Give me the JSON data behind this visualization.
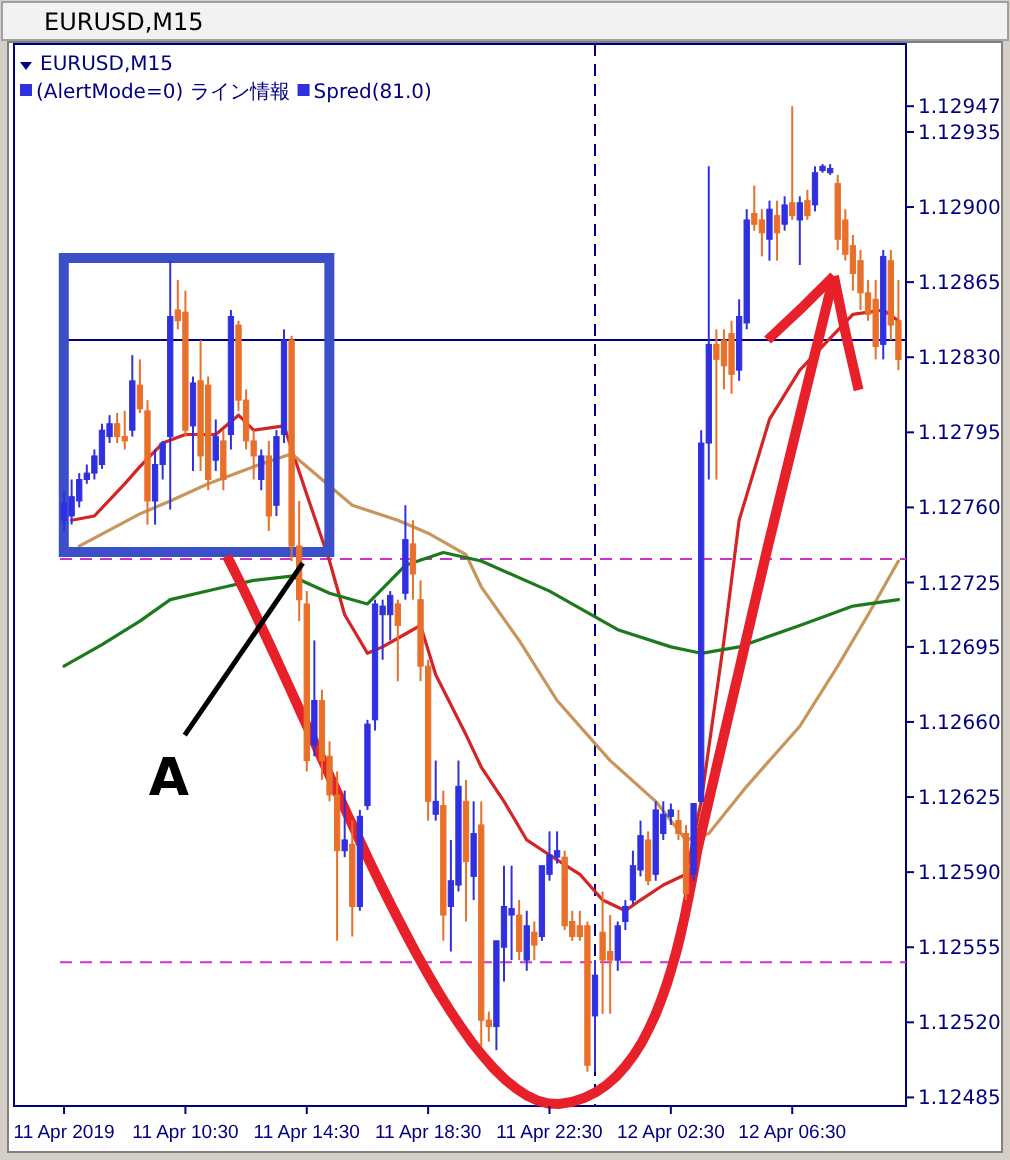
{
  "chart_data": {
    "type": "candlestick",
    "title": "EURUSD,M15",
    "annotations": [
      "EURUSD,M15",
      "(AlertMode=0) ライン情報",
      "Spred(81.0)",
      {
        "text": "A",
        "x": "2019-04-11T14:22",
        "y": 1.12734
      }
    ],
    "x": [
      "2019-04-11T06:30",
      "2019-04-11T06:45",
      "2019-04-11T07:00",
      "2019-04-11T07:15",
      "2019-04-11T07:30",
      "2019-04-11T07:45",
      "2019-04-11T08:00",
      "2019-04-11T08:15",
      "2019-04-11T08:30",
      "2019-04-11T08:45",
      "2019-04-11T09:00",
      "2019-04-11T09:15",
      "2019-04-11T09:30",
      "2019-04-11T09:45",
      "2019-04-11T10:00",
      "2019-04-11T10:15",
      "2019-04-11T10:30",
      "2019-04-11T10:45",
      "2019-04-11T11:00",
      "2019-04-11T11:15",
      "2019-04-11T11:30",
      "2019-04-11T11:45",
      "2019-04-11T12:00",
      "2019-04-11T12:15",
      "2019-04-11T12:30",
      "2019-04-11T12:45",
      "2019-04-11T13:00",
      "2019-04-11T13:15",
      "2019-04-11T13:30",
      "2019-04-11T13:45",
      "2019-04-11T14:00",
      "2019-04-11T14:15",
      "2019-04-11T14:30",
      "2019-04-11T14:45",
      "2019-04-11T15:00",
      "2019-04-11T15:15",
      "2019-04-11T15:30",
      "2019-04-11T15:45",
      "2019-04-11T16:00",
      "2019-04-11T16:15",
      "2019-04-11T16:30",
      "2019-04-11T16:45",
      "2019-04-11T17:00",
      "2019-04-11T17:15",
      "2019-04-11T17:30",
      "2019-04-11T17:45",
      "2019-04-11T18:00",
      "2019-04-11T18:15",
      "2019-04-11T18:30",
      "2019-04-11T18:45",
      "2019-04-11T19:00",
      "2019-04-11T19:15",
      "2019-04-11T19:30",
      "2019-04-11T19:45",
      "2019-04-11T20:00",
      "2019-04-11T20:15",
      "2019-04-11T20:30",
      "2019-04-11T20:45",
      "2019-04-11T21:00",
      "2019-04-11T21:15",
      "2019-04-11T21:30",
      "2019-04-11T21:45",
      "2019-04-11T22:00",
      "2019-04-11T22:15",
      "2019-04-11T22:30",
      "2019-04-11T22:45",
      "2019-04-11T23:00",
      "2019-04-11T23:15",
      "2019-04-11T23:30",
      "2019-04-11T23:45",
      "2019-04-12T00:00",
      "2019-04-12T00:15",
      "2019-04-12T00:30",
      "2019-04-12T00:45",
      "2019-04-12T01:00",
      "2019-04-12T01:15",
      "2019-04-12T01:30",
      "2019-04-12T01:45",
      "2019-04-12T02:00",
      "2019-04-12T02:15",
      "2019-04-12T02:30",
      "2019-04-12T02:45",
      "2019-04-12T03:00",
      "2019-04-12T03:15",
      "2019-04-12T03:30",
      "2019-04-12T03:45",
      "2019-04-12T04:00",
      "2019-04-12T04:15",
      "2019-04-12T04:30",
      "2019-04-12T04:45",
      "2019-04-12T05:00",
      "2019-04-12T05:15",
      "2019-04-12T05:30",
      "2019-04-12T05:45",
      "2019-04-12T06:00",
      "2019-04-12T06:15",
      "2019-04-12T06:30",
      "2019-04-12T06:45",
      "2019-04-12T07:00",
      "2019-04-12T07:15",
      "2019-04-12T07:30",
      "2019-04-12T07:45",
      "2019-04-12T08:00",
      "2019-04-12T08:15",
      "2019-04-12T08:30",
      "2019-04-12T08:45",
      "2019-04-12T09:00",
      "2019-04-12T09:15",
      "2019-04-12T09:30",
      "2019-04-12T09:45",
      "2019-04-12T10:00"
    ],
    "ohlc": [
      [
        1.12754,
        1.12768,
        1.12749,
        1.12762
      ],
      [
        1.12756,
        1.12773,
        1.12752,
        1.12765
      ],
      [
        1.12763,
        1.12776,
        1.1276,
        1.12773
      ],
      [
        1.12773,
        1.1278,
        1.12771,
        1.12776
      ],
      [
        1.12776,
        1.12787,
        1.12773,
        1.12784
      ],
      [
        1.1278,
        1.12799,
        1.12778,
        1.12796
      ],
      [
        1.12793,
        1.12803,
        1.1279,
        1.12799
      ],
      [
        1.12799,
        1.12804,
        1.1279,
        1.12793
      ],
      [
        1.12793,
        1.12805,
        1.12787,
        1.12791
      ],
      [
        1.12796,
        1.12831,
        1.12793,
        1.12819
      ],
      [
        1.12817,
        1.12829,
        1.12804,
        1.12806
      ],
      [
        1.12805,
        1.1281,
        1.12752,
        1.12763
      ],
      [
        1.12763,
        1.12787,
        1.12752,
        1.1278
      ],
      [
        1.1278,
        1.12791,
        1.12773,
        1.1279
      ],
      [
        1.12793,
        1.12875,
        1.12759,
        1.12849
      ],
      [
        1.12852,
        1.12866,
        1.12843,
        1.12847
      ],
      [
        1.12851,
        1.12861,
        1.12793,
        1.12796
      ],
      [
        1.12798,
        1.12821,
        1.12777,
        1.12818
      ],
      [
        1.12819,
        1.12838,
        1.12777,
        1.12784
      ],
      [
        1.12817,
        1.12821,
        1.12768,
        1.12773
      ],
      [
        1.12782,
        1.12801,
        1.12777,
        1.12793
      ],
      [
        1.12791,
        1.12796,
        1.12768,
        1.12773
      ],
      [
        1.12794,
        1.12852,
        1.12787,
        1.12849
      ],
      [
        1.12845,
        1.12847,
        1.12805,
        1.1281
      ],
      [
        1.1281,
        1.12815,
        1.12787,
        1.12791
      ],
      [
        1.12791,
        1.12796,
        1.12773,
        1.12784
      ],
      [
        1.12773,
        1.12787,
        1.12768,
        1.12784
      ],
      [
        1.12784,
        1.12791,
        1.12749,
        1.12756
      ],
      [
        1.12761,
        1.12796,
        1.12756,
        1.12793
      ],
      [
        1.12794,
        1.12843,
        1.1279,
        1.12838
      ],
      [
        1.12838,
        1.1284,
        1.12735,
        1.12742
      ],
      [
        1.12742,
        1.12763,
        1.12707,
        1.12717
      ],
      [
        1.12715,
        1.12721,
        1.12637,
        1.12642
      ],
      [
        1.12649,
        1.12698,
        1.12644,
        1.1267
      ],
      [
        1.1267,
        1.12675,
        1.12633,
        1.12642
      ],
      [
        1.12644,
        1.12651,
        1.12623,
        1.12626
      ],
      [
        1.12626,
        1.12637,
        1.12558,
        1.126
      ],
      [
        1.126,
        1.12628,
        1.12597,
        1.12605
      ],
      [
        1.12603,
        1.12614,
        1.1256,
        1.12574
      ],
      [
        1.12574,
        1.12619,
        1.12572,
        1.12616
      ],
      [
        1.12621,
        1.12661,
        1.12619,
        1.12659
      ],
      [
        1.12661,
        1.12717,
        1.12656,
        1.12715
      ],
      [
        1.1271,
        1.12717,
        1.12689,
        1.12714
      ],
      [
        1.1271,
        1.12721,
        1.12698,
        1.12719
      ],
      [
        1.12715,
        1.12717,
        1.12679,
        1.12705
      ],
      [
        1.1272,
        1.12761,
        1.12717,
        1.12745
      ],
      [
        1.12743,
        1.12754,
        1.12717,
        1.12729
      ],
      [
        1.12717,
        1.12726,
        1.12679,
        1.12686
      ],
      [
        1.12686,
        1.12689,
        1.12614,
        1.12623
      ],
      [
        1.12617,
        1.12642,
        1.12614,
        1.12623
      ],
      [
        1.12621,
        1.12628,
        1.12558,
        1.1257
      ],
      [
        1.12574,
        1.12605,
        1.12553,
        1.12586
      ],
      [
        1.12584,
        1.12642,
        1.12581,
        1.1263
      ],
      [
        1.12623,
        1.12633,
        1.12567,
        1.12595
      ],
      [
        1.12588,
        1.12623,
        1.12577,
        1.12608
      ],
      [
        1.12612,
        1.12623,
        1.12509,
        1.12521
      ],
      [
        1.12521,
        1.12525,
        1.12511,
        1.12518
      ],
      [
        1.12518,
        1.12558,
        1.12507,
        1.12558
      ],
      [
        1.12555,
        1.12593,
        1.12539,
        1.12574
      ],
      [
        1.1257,
        1.12593,
        1.12549,
        1.12573
      ],
      [
        1.1257,
        1.12577,
        1.12549,
        1.12553
      ],
      [
        1.12549,
        1.12572,
        1.12544,
        1.12565
      ],
      [
        1.12562,
        1.12567,
        1.12549,
        1.12556
      ],
      [
        1.1256,
        1.12593,
        1.12558,
        1.12593
      ],
      [
        1.12589,
        1.12609,
        1.12586,
        1.12598
      ],
      [
        1.12597,
        1.12609,
        1.12594,
        1.126
      ],
      [
        1.12597,
        1.126,
        1.12563,
        1.12565
      ],
      [
        1.12567,
        1.12572,
        1.12558,
        1.1256
      ],
      [
        1.12565,
        1.12572,
        1.12558,
        1.1256
      ],
      [
        1.12565,
        1.12567,
        1.12497,
        1.125
      ],
      [
        1.12523,
        1.12549,
        1.12497,
        1.12542
      ],
      [
        1.12562,
        1.12581,
        1.12524,
        1.12549
      ],
      [
        1.12553,
        1.1257,
        1.12524,
        1.12549
      ],
      [
        1.12549,
        1.12567,
        1.12544,
        1.12565
      ],
      [
        1.12567,
        1.12577,
        1.12563,
        1.12574
      ],
      [
        1.12577,
        1.126,
        1.12575,
        1.12593
      ],
      [
        1.12591,
        1.12614,
        1.12588,
        1.12607
      ],
      [
        1.12605,
        1.12609,
        1.12584,
        1.12586
      ],
      [
        1.12589,
        1.12623,
        1.12586,
        1.12619
      ],
      [
        1.12608,
        1.12623,
        1.12605,
        1.12617
      ],
      [
        1.12616,
        1.12622,
        1.12612,
        1.12619
      ],
      [
        1.12614,
        1.12619,
        1.12605,
        1.12608
      ],
      [
        1.12608,
        1.12612,
        1.12577,
        1.1258
      ],
      [
        1.12589,
        1.12622,
        1.12586,
        1.12622
      ],
      [
        1.12623,
        1.12796,
        1.12622,
        1.1279
      ],
      [
        1.1279,
        1.12919,
        1.12773,
        1.12836
      ],
      [
        1.12836,
        1.12843,
        1.12773,
        1.12829
      ],
      [
        1.12838,
        1.12843,
        1.12815,
        1.12826
      ],
      [
        1.12841,
        1.12847,
        1.12813,
        1.12822
      ],
      [
        1.12824,
        1.12857,
        1.12819,
        1.12849
      ],
      [
        1.12846,
        1.12899,
        1.12843,
        1.12894
      ],
      [
        1.12897,
        1.1291,
        1.12889,
        1.12892
      ],
      [
        1.12894,
        1.12899,
        1.12877,
        1.12888
      ],
      [
        1.12885,
        1.12903,
        1.12875,
        1.12899
      ],
      [
        1.12896,
        1.12903,
        1.12875,
        1.12888
      ],
      [
        1.12892,
        1.12905,
        1.12889,
        1.12901
      ],
      [
        1.12902,
        1.12947,
        1.12894,
        1.12896
      ],
      [
        1.12894,
        1.12905,
        1.12873,
        1.12902
      ],
      [
        1.12903,
        1.12908,
        1.12894,
        1.12896
      ],
      [
        1.12901,
        1.12919,
        1.12898,
        1.12916
      ],
      [
        1.12917,
        1.1292,
        1.12916,
        1.12919
      ],
      [
        1.12916,
        1.1292,
        1.12915,
        1.12918
      ],
      [
        1.12911,
        1.12915,
        1.1288,
        1.12885
      ],
      [
        1.12894,
        1.12899,
        1.12875,
        1.12878
      ],
      [
        1.12882,
        1.12887,
        1.12861,
        1.12869
      ],
      [
        1.12875,
        1.1288,
        1.12852,
        1.1286
      ],
      [
        1.1286,
        1.12866,
        1.12847,
        1.1285
      ],
      [
        1.12857,
        1.12866,
        1.12829,
        1.12835
      ],
      [
        1.12836,
        1.1288,
        1.12829,
        1.12877
      ],
      [
        1.12875,
        1.1288,
        1.12838,
        1.12845
      ],
      [
        1.12847,
        1.12866,
        1.12824,
        1.12829
      ]
    ],
    "colors": [
      "#3030e0",
      "#3030e0",
      "#3030e0",
      "#3030e0",
      "#3030e0",
      "#3030e0",
      "#3030e0",
      "#e8702a",
      "#e8702a",
      "#3030e0",
      "#e8702a",
      "#e8702a",
      "#3030e0",
      "#3030e0",
      "#3030e0",
      "#e8702a",
      "#e8702a",
      "#3030e0",
      "#e8702a",
      "#e8702a",
      "#3030e0",
      "#e8702a",
      "#3030e0",
      "#e8702a",
      "#e8702a",
      "#e8702a",
      "#3030e0",
      "#e8702a",
      "#3030e0",
      "#3030e0",
      "#e8702a",
      "#e8702a",
      "#e8702a",
      "#3030e0",
      "#e8702a",
      "#e8702a",
      "#e8702a",
      "#3030e0",
      "#e8702a",
      "#3030e0",
      "#3030e0",
      "#3030e0",
      "#3030e0",
      "#3030e0",
      "#e8702a",
      "#3030e0",
      "#e8702a",
      "#e8702a",
      "#e8702a",
      "#3030e0",
      "#e8702a",
      "#3030e0",
      "#3030e0",
      "#e8702a",
      "#3030e0",
      "#e8702a",
      "#e8702a",
      "#3030e0",
      "#3030e0",
      "#3030e0",
      "#e8702a",
      "#3030e0",
      "#e8702a",
      "#3030e0",
      "#3030e0",
      "#3030e0",
      "#e8702a",
      "#e8702a",
      "#e8702a",
      "#e8702a",
      "#3030e0",
      "#e8702a",
      "#e8702a",
      "#3030e0",
      "#3030e0",
      "#3030e0",
      "#3030e0",
      "#e8702a",
      "#3030e0",
      "#3030e0",
      "#3030e0",
      "#e8702a",
      "#e8702a",
      "#3030e0",
      "#3030e0",
      "#3030e0",
      "#e8702a",
      "#e8702a",
      "#e8702a",
      "#3030e0",
      "#3030e0",
      "#e8702a",
      "#e8702a",
      "#3030e0",
      "#e8702a",
      "#3030e0",
      "#e8702a",
      "#3030e0",
      "#e8702a",
      "#3030e0",
      "#3030e0",
      "#3030e0",
      "#e8702a",
      "#e8702a",
      "#e8702a",
      "#e8702a",
      "#e8702a",
      "#e8702a",
      "#3030e0",
      "#e8702a",
      "#e8702a"
    ],
    "series": [
      {
        "type": "line",
        "color": "#d42424",
        "x": [
          "2019-04-11T06:45",
          "2019-04-11T07:30",
          "2019-04-11T08:30",
          "2019-04-11T09:00",
          "2019-04-11T09:45",
          "2019-04-11T10:30",
          "2019-04-11T11:30",
          "2019-04-11T12:15",
          "2019-04-11T12:45",
          "2019-04-11T13:45",
          "2019-04-11T14:30",
          "2019-04-11T15:15",
          "2019-04-11T15:45",
          "2019-04-11T16:30",
          "2019-04-11T17:00",
          "2019-04-11T17:45",
          "2019-04-11T18:15",
          "2019-04-11T18:45",
          "2019-04-11T19:45",
          "2019-04-11T20:15",
          "2019-04-11T21:00",
          "2019-04-11T21:45",
          "2019-04-11T22:30",
          "2019-04-11T23:30",
          "2019-04-12T00:15",
          "2019-04-12T01:00",
          "2019-04-12T01:30",
          "2019-04-12T02:15",
          "2019-04-12T03:00",
          "2019-04-12T03:30",
          "2019-04-12T04:15",
          "2019-04-12T04:45",
          "2019-04-12T05:45",
          "2019-04-12T06:45",
          "2019-04-12T08:30",
          "2019-04-12T09:30",
          "2019-04-12T10:00"
        ],
        "values": [
          1.12754,
          1.12756,
          1.12771,
          1.12779,
          1.1279,
          1.12794,
          1.12794,
          1.12803,
          1.12796,
          1.12798,
          1.12766,
          1.12735,
          1.1271,
          1.12692,
          1.12695,
          1.12701,
          1.12705,
          1.12682,
          1.12654,
          1.12639,
          1.12623,
          1.12605,
          1.12598,
          1.12589,
          1.12577,
          1.12572,
          1.12577,
          1.12584,
          1.12589,
          1.12623,
          1.12698,
          1.12754,
          1.12801,
          1.12824,
          1.1285,
          1.12852,
          1.12847
        ]
      },
      {
        "type": "line",
        "color": "#c8955a",
        "x": [
          "2019-04-11T07:00",
          "2019-04-11T09:00",
          "2019-04-11T10:00",
          "2019-04-11T11:15",
          "2019-04-11T12:45",
          "2019-04-11T14:00",
          "2019-04-11T15:00",
          "2019-04-11T16:00",
          "2019-04-11T17:30",
          "2019-04-11T18:30",
          "2019-04-11T19:45",
          "2019-04-11T20:15",
          "2019-04-11T21:30",
          "2019-04-11T22:45",
          "2019-04-12T00:30",
          "2019-04-12T02:00",
          "2019-04-12T03:00",
          "2019-04-12T03:45",
          "2019-04-12T05:00",
          "2019-04-12T06:45",
          "2019-04-12T08:00",
          "2019-04-12T09:00",
          "2019-04-12T10:00"
        ],
        "values": [
          1.12742,
          1.12757,
          1.12763,
          1.12771,
          1.12779,
          1.12785,
          1.12773,
          1.12761,
          1.12754,
          1.12748,
          1.12738,
          1.12723,
          1.12698,
          1.1267,
          1.12642,
          1.12623,
          1.12605,
          1.12608,
          1.1263,
          1.12658,
          1.12686,
          1.1271,
          1.12735
        ]
      },
      {
        "type": "line",
        "color": "#1c7a1c",
        "x": [
          "2019-04-11T06:30",
          "2019-04-11T07:45",
          "2019-04-11T09:00",
          "2019-04-11T10:00",
          "2019-04-11T11:30",
          "2019-04-11T12:45",
          "2019-04-11T14:00",
          "2019-04-11T15:15",
          "2019-04-11T16:30",
          "2019-04-11T17:45",
          "2019-04-11T19:00",
          "2019-04-11T20:15",
          "2019-04-11T22:30",
          "2019-04-12T00:45",
          "2019-04-12T02:30",
          "2019-04-12T03:30",
          "2019-04-12T04:45",
          "2019-04-12T06:45",
          "2019-04-12T08:30",
          "2019-04-12T10:00"
        ],
        "values": [
          1.12686,
          1.12696,
          1.12707,
          1.12717,
          1.12722,
          1.12726,
          1.12728,
          1.1272,
          1.12715,
          1.12733,
          1.12739,
          1.12735,
          1.12721,
          1.12703,
          1.12695,
          1.12692,
          1.12695,
          1.12705,
          1.12714,
          1.12717
        ]
      }
    ],
    "xlim": [
      "2019-04-11T06:22",
      "2019-04-12T10:15"
    ],
    "xticks": [
      {
        "value": "2019-04-11T06:30",
        "label": "11 Apr 2019"
      },
      {
        "value": "2019-04-11T10:30",
        "label": "11 Apr 10:30"
      },
      {
        "value": "2019-04-11T14:30",
        "label": "11 Apr 14:30"
      },
      {
        "value": "2019-04-11T18:30",
        "label": "11 Apr 18:30"
      },
      {
        "value": "2019-04-11T22:30",
        "label": "11 Apr 22:30"
      },
      {
        "value": "2019-04-12T02:30",
        "label": "12 Apr 02:30"
      },
      {
        "value": "2019-04-12T06:30",
        "label": "12 Apr 06:30"
      }
    ],
    "ylim": [
      1.12481,
      1.12976
    ],
    "yticks": [
      {
        "value": 1.12947,
        "label": "1.12947"
      },
      {
        "value": 1.12935,
        "label": "1.12935"
      },
      {
        "value": 1.129,
        "label": "1.12900"
      },
      {
        "value": 1.12865,
        "label": "1.12865"
      },
      {
        "value": 1.1283,
        "label": "1.12830"
      },
      {
        "value": 1.12795,
        "label": "1.12795"
      },
      {
        "value": 1.1276,
        "label": "1.12760"
      },
      {
        "value": 1.12725,
        "label": "1.12725"
      },
      {
        "value": 1.12695,
        "label": "1.12695"
      },
      {
        "value": 1.1266,
        "label": "1.12660"
      },
      {
        "value": 1.12625,
        "label": "1.12625"
      },
      {
        "value": 1.1259,
        "label": "1.12590"
      },
      {
        "value": 1.12555,
        "label": "1.12555"
      },
      {
        "value": 1.1252,
        "label": "1.12520"
      },
      {
        "value": 1.12485,
        "label": "1.12485"
      }
    ],
    "ref_lines": [
      {
        "axis": "y",
        "value": 1.12838,
        "color": "#000080",
        "line_style": "solid"
      },
      {
        "axis": "y",
        "value": 1.12736,
        "color": "#cc33cc",
        "line_style": "dashed"
      },
      {
        "axis": "y",
        "value": 1.12548,
        "color": "#cc33cc",
        "line_style": "dashed"
      },
      {
        "axis": "x",
        "value": "2019-04-12T00:00",
        "color": "#000080",
        "line_style": "dashed"
      }
    ]
  }
}
